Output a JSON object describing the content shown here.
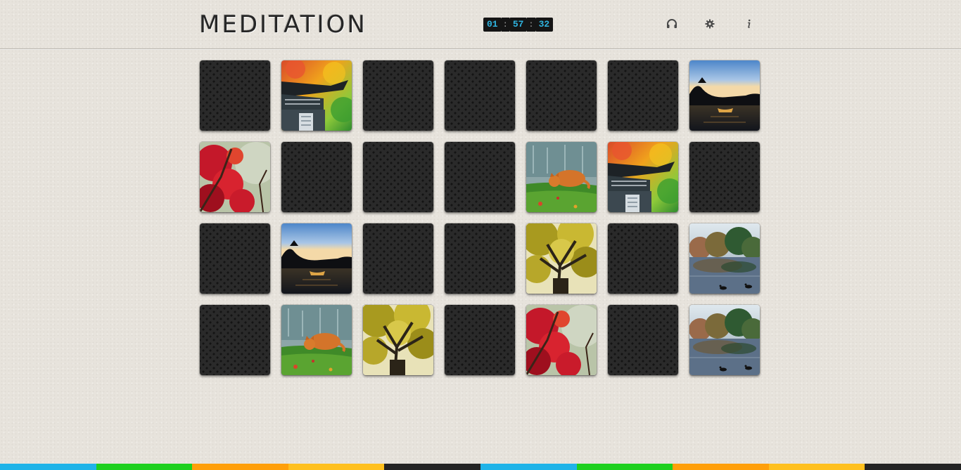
{
  "header": {
    "logo": "MEDITATION",
    "timer": {
      "hours": "01",
      "minutes": "57",
      "seconds": "32",
      "separator": ":"
    },
    "icons": [
      "headphones-icon",
      "gear-icon",
      "info-icon"
    ]
  },
  "board": {
    "rows": 4,
    "cols": 7,
    "tiles": [
      "back",
      "temple",
      "back",
      "back",
      "back",
      "back",
      "lake",
      "red-maple",
      "back",
      "back",
      "back",
      "cat",
      "temple",
      "back",
      "back",
      "lake",
      "back",
      "back",
      "yellow-tree",
      "back",
      "pond",
      "back",
      "cat",
      "yellow-tree",
      "back",
      "red-maple",
      "back",
      "pond"
    ]
  },
  "bottom_bar": {
    "colors": [
      "#1fb3e8",
      "#1ed01e",
      "#ff9f0a",
      "#ffc01e",
      "#242424",
      "#1fb3e8",
      "#1ed01e",
      "#ff9f0a",
      "#ffc01e",
      "#242424"
    ]
  }
}
